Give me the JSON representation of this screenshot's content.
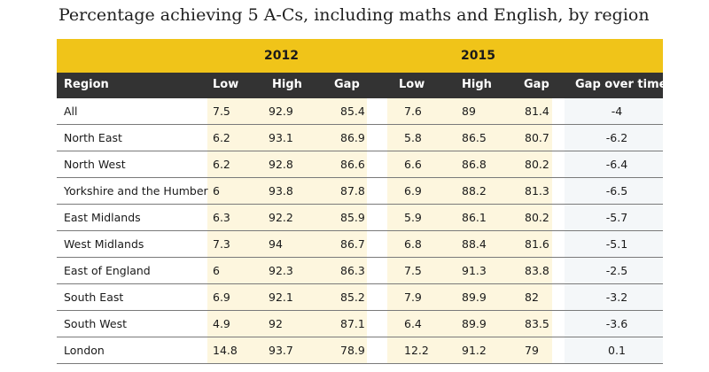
{
  "title": "Percentage achieving 5 A-Cs, including maths and English, by region",
  "chart_data": {
    "type": "table",
    "year_groups": [
      "2012",
      "2015"
    ],
    "columns": [
      "Region",
      "Low",
      "High",
      "Gap",
      "Low",
      "High",
      "Gap",
      "Gap over time"
    ],
    "rows": [
      [
        "All",
        "7.5",
        "92.9",
        "85.4",
        "7.6",
        "89",
        "81.4",
        "-4"
      ],
      [
        "North East",
        "6.2",
        "93.1",
        "86.9",
        "5.8",
        "86.5",
        "80.7",
        "-6.2"
      ],
      [
        "North West",
        "6.2",
        "92.8",
        "86.6",
        "6.6",
        "86.8",
        "80.2",
        "-6.4"
      ],
      [
        "Yorkshire and the Humber",
        "6",
        "93.8",
        "87.8",
        "6.9",
        "88.2",
        "81.3",
        "-6.5"
      ],
      [
        "East Midlands",
        "6.3",
        "92.2",
        "85.9",
        "5.9",
        "86.1",
        "80.2",
        "-5.7"
      ],
      [
        "West Midlands",
        "7.3",
        "94",
        "86.7",
        "6.8",
        "88.4",
        "81.6",
        "-5.1"
      ],
      [
        "East of England",
        "6",
        "92.3",
        "86.3",
        "7.5",
        "91.3",
        "83.8",
        "-2.5"
      ],
      [
        "South East",
        "6.9",
        "92.1",
        "85.2",
        "7.9",
        "89.9",
        "82",
        "-3.2"
      ],
      [
        "South West",
        "4.9",
        "92",
        "87.1",
        "6.4",
        "89.9",
        "83.5",
        "-3.6"
      ],
      [
        "London",
        "14.8",
        "93.7",
        "78.9",
        "12.2",
        "91.2",
        "79",
        "0.1"
      ]
    ]
  },
  "colors": {
    "year_band": "#f0c419",
    "header": "#333333",
    "cell_tint": "#fdf6de",
    "gap_tint": "#f4f7f9"
  }
}
